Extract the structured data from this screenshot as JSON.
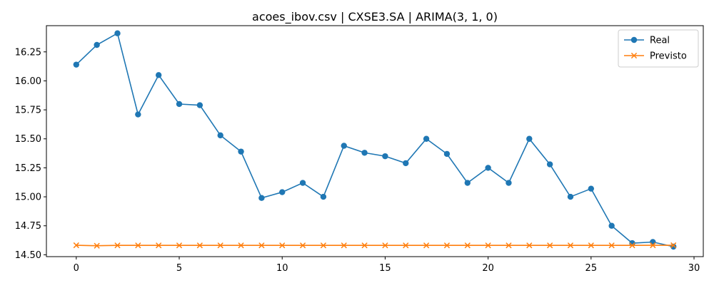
{
  "chart_data": {
    "type": "line",
    "title": "acoes_ibov.csv | CXSE3.SA | ARIMA(3, 1, 0)",
    "xlabel": "",
    "ylabel": "",
    "x": [
      0,
      1,
      2,
      3,
      4,
      5,
      6,
      7,
      8,
      9,
      10,
      11,
      12,
      13,
      14,
      15,
      16,
      17,
      18,
      19,
      20,
      21,
      22,
      23,
      24,
      25,
      26,
      27,
      28,
      29
    ],
    "xlim": [
      -1.45,
      30.45
    ],
    "ylim": [
      14.484,
      16.476
    ],
    "xticks": [
      0,
      5,
      10,
      15,
      20,
      25,
      30
    ],
    "xtick_labels": [
      "0",
      "5",
      "10",
      "15",
      "20",
      "25",
      "30"
    ],
    "yticks": [
      14.5,
      14.75,
      15.0,
      15.25,
      15.5,
      15.75,
      16.0,
      16.25
    ],
    "ytick_labels": [
      "14.50",
      "14.75",
      "15.00",
      "15.25",
      "15.50",
      "15.75",
      "16.00",
      "16.25"
    ],
    "grid": false,
    "legend_position": "top-right",
    "series": [
      {
        "name": "Real",
        "color": "#1f77b4",
        "marker": "circle",
        "values": [
          16.14,
          16.31,
          16.41,
          15.71,
          16.05,
          15.8,
          15.79,
          15.53,
          15.39,
          14.99,
          15.04,
          15.12,
          15.0,
          15.44,
          15.38,
          15.35,
          15.29,
          15.5,
          15.37,
          15.12,
          15.25,
          15.12,
          15.5,
          15.28,
          15.0,
          15.07,
          14.75,
          14.6,
          14.61,
          14.57
        ]
      },
      {
        "name": "Previsto",
        "color": "#ff7f0e",
        "marker": "x",
        "values": [
          14.582,
          14.578,
          14.581,
          14.581,
          14.581,
          14.581,
          14.581,
          14.581,
          14.581,
          14.581,
          14.581,
          14.581,
          14.581,
          14.581,
          14.581,
          14.581,
          14.581,
          14.581,
          14.581,
          14.581,
          14.581,
          14.581,
          14.581,
          14.581,
          14.581,
          14.581,
          14.581,
          14.581,
          14.582,
          14.582
        ]
      }
    ]
  }
}
